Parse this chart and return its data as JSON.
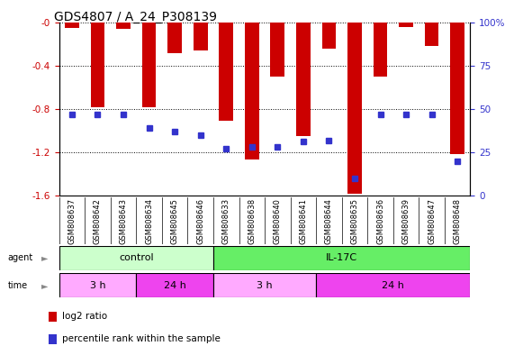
{
  "title": "GDS4807 / A_24_P308139",
  "samples": [
    "GSM808637",
    "GSM808642",
    "GSM808643",
    "GSM808634",
    "GSM808645",
    "GSM808646",
    "GSM808633",
    "GSM808638",
    "GSM808640",
    "GSM808641",
    "GSM808644",
    "GSM808635",
    "GSM808636",
    "GSM808639",
    "GSM808647",
    "GSM808648"
  ],
  "log2_ratios": [
    -0.05,
    -0.78,
    -0.06,
    -0.78,
    -0.28,
    -0.26,
    -0.91,
    -1.27,
    -0.5,
    -1.05,
    -0.24,
    -1.58,
    -0.5,
    -0.04,
    -0.22,
    -1.22
  ],
  "percentile_ranks": [
    47,
    47,
    47,
    39,
    37,
    35,
    27,
    28,
    28,
    31,
    32,
    10,
    47,
    47,
    47,
    20
  ],
  "bar_color": "#cc0000",
  "dot_color": "#3333cc",
  "ylim_left": [
    -1.6,
    0.0
  ],
  "ylim_right": [
    0,
    100
  ],
  "yticks_left": [
    0.0,
    -0.4,
    -0.8,
    -1.2,
    -1.6
  ],
  "ytick_labels_left": [
    "-0",
    "-0.4",
    "-0.8",
    "-1.2",
    "-1.6"
  ],
  "yticks_right": [
    0,
    25,
    50,
    75,
    100
  ],
  "ytick_labels_right": [
    "0",
    "25",
    "50",
    "75",
    "100%"
  ],
  "agent_groups": [
    {
      "label": "control",
      "start": 0,
      "end": 6,
      "color": "#ccffcc"
    },
    {
      "label": "IL-17C",
      "start": 6,
      "end": 16,
      "color": "#66ee66"
    }
  ],
  "time_groups": [
    {
      "label": "3 h",
      "start": 0,
      "end": 3,
      "color": "#ffaaff"
    },
    {
      "label": "24 h",
      "start": 3,
      "end": 6,
      "color": "#ee44ee"
    },
    {
      "label": "3 h",
      "start": 6,
      "end": 10,
      "color": "#ffaaff"
    },
    {
      "label": "24 h",
      "start": 10,
      "end": 16,
      "color": "#ee44ee"
    }
  ],
  "legend_items": [
    {
      "label": "log2 ratio",
      "color": "#cc0000"
    },
    {
      "label": "percentile rank within the sample",
      "color": "#3333cc"
    }
  ],
  "bar_width": 0.55,
  "dot_size": 4,
  "background_color": "#ffffff",
  "label_color_left": "#cc0000",
  "label_color_right": "#3333cc",
  "title_fontsize": 10,
  "tick_fontsize": 7.5,
  "sample_fontsize": 6.0
}
